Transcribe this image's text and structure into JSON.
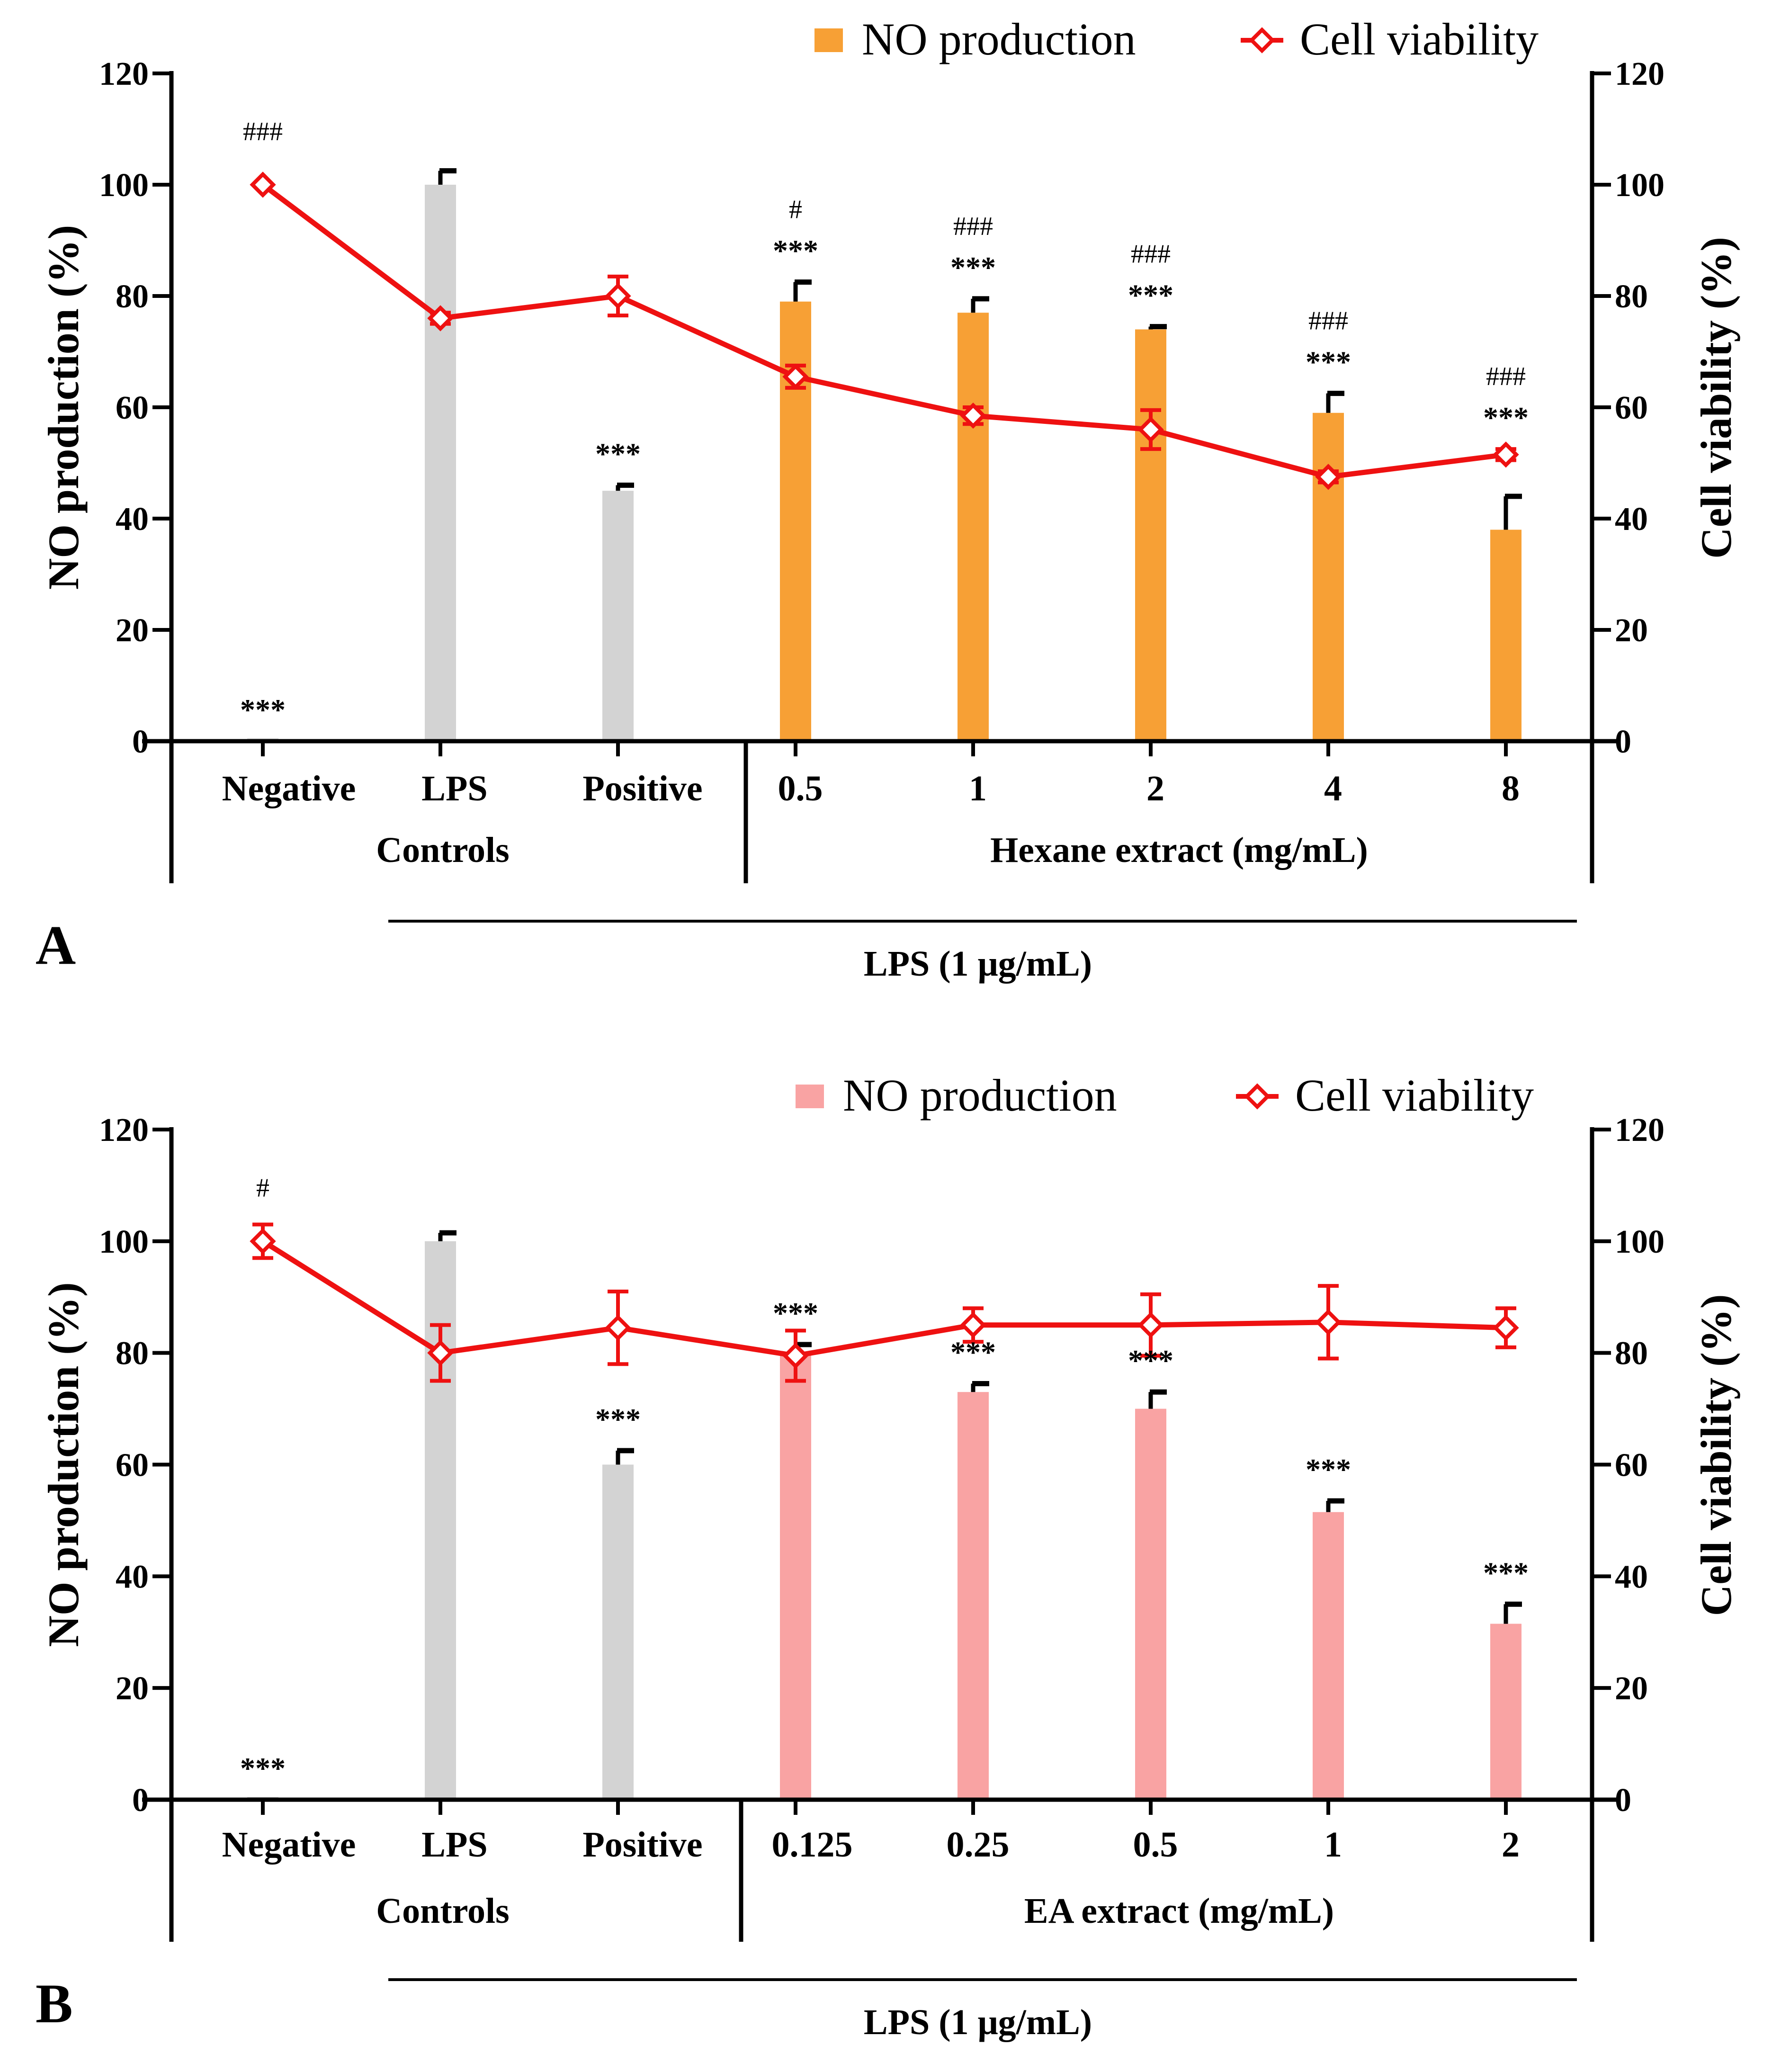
{
  "chart_data": [
    {
      "type": "bar+line",
      "panel_label": "A",
      "ylabel_left": "NO production (%)",
      "ylabel_right": "Cell viability (%)",
      "ylim": [
        0,
        120
      ],
      "yticks": [
        0,
        20,
        40,
        60,
        80,
        100,
        120
      ],
      "categories": [
        "Negative",
        "LPS",
        "Positive",
        "0.5",
        "1",
        "2",
        "4",
        "8"
      ],
      "groups": [
        {
          "label": "Controls",
          "range": [
            0,
            2
          ]
        },
        {
          "label": "Hexane extract (mg/mL)",
          "range": [
            3,
            7
          ]
        }
      ],
      "treatment_label": "LPS (1 μg/mL)",
      "legend": {
        "bar": "NO production",
        "line": "Cell viability"
      },
      "colors": {
        "bar_control": "#d3d3d3",
        "bar_extract": "#f7a035",
        "line": "#ee1111"
      },
      "series": [
        {
          "name": "NO production",
          "kind": "bar",
          "values": [
            0.5,
            100,
            45,
            79,
            77,
            74,
            59,
            38
          ],
          "errors": [
            0,
            2.5,
            1,
            3.5,
            2.5,
            0.5,
            3.5,
            6
          ]
        },
        {
          "name": "Cell viability",
          "kind": "line",
          "values": [
            100,
            76,
            80,
            65.5,
            58.5,
            56,
            47.5,
            51.5
          ],
          "errors": [
            0,
            1,
            3.5,
            2,
            1.5,
            3.5,
            1,
            1
          ]
        }
      ],
      "stars": [
        "***",
        "",
        "***",
        "***",
        "***",
        "***",
        "***",
        "***"
      ],
      "hashes": [
        "###",
        "",
        "",
        "#",
        "###",
        "###",
        "###",
        "###"
      ]
    },
    {
      "type": "bar+line",
      "panel_label": "B",
      "ylabel_left": "NO production (%)",
      "ylabel_right": "Cell viability (%)",
      "ylim": [
        0,
        120
      ],
      "yticks": [
        0,
        20,
        40,
        60,
        80,
        100,
        120
      ],
      "categories": [
        "Negative",
        "LPS",
        "Positive",
        "0.125",
        "0.25",
        "0.5",
        "1",
        "2"
      ],
      "groups": [
        {
          "label": "Controls",
          "range": [
            0,
            2
          ]
        },
        {
          "label": "EA extract (mg/mL)",
          "range": [
            3,
            7
          ]
        }
      ],
      "treatment_label": "LPS (1 μg/mL)",
      "legend": {
        "bar": "NO production",
        "line": "Cell viability"
      },
      "colors": {
        "bar_control": "#d3d3d3",
        "bar_extract": "#f9a3a3",
        "line": "#ee1111"
      },
      "series": [
        {
          "name": "NO production",
          "kind": "bar",
          "values": [
            0.5,
            100,
            60,
            80,
            73,
            70,
            51.5,
            31.5
          ],
          "errors": [
            0,
            1.5,
            2.5,
            1.5,
            1.5,
            3,
            2,
            3.5
          ]
        },
        {
          "name": "Cell viability",
          "kind": "line",
          "values": [
            100,
            80,
            84.5,
            79.5,
            85,
            85,
            85.5,
            84.5
          ],
          "errors": [
            3,
            5,
            6.5,
            4.5,
            3,
            5.5,
            6.5,
            3.5
          ]
        }
      ],
      "stars": [
        "***",
        "",
        "***",
        "***",
        "***",
        "***",
        "***",
        "***"
      ],
      "hashes": [
        "#",
        "",
        "",
        "",
        "",
        "",
        "",
        ""
      ]
    }
  ]
}
